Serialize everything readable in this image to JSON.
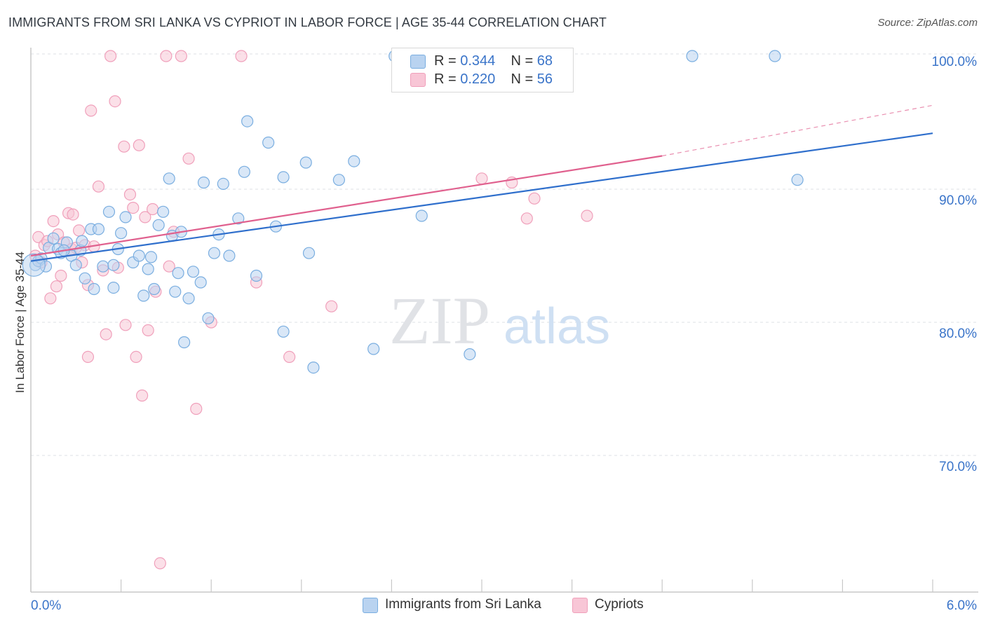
{
  "title": "IMMIGRANTS FROM SRI LANKA VS CYPRIOT IN LABOR FORCE | AGE 35-44 CORRELATION CHART",
  "source": "Source: ZipAtlas.com",
  "watermark": {
    "zip": "ZIP",
    "atlas": "atlas"
  },
  "legend": {
    "blue": {
      "r_label": "R = ",
      "r_value": "0.344",
      "n_label": "N = ",
      "n_value": "68"
    },
    "pink": {
      "r_label": "R = ",
      "r_value": "0.220",
      "n_label": "N = ",
      "n_value": "56"
    }
  },
  "colors": {
    "blue": "#7aaee0",
    "blue_fill": "#b9d3f0",
    "blue_line": "#2f6fcc",
    "pink": "#f0a0bb",
    "pink_fill": "#f8c6d6",
    "pink_line": "#e0608e",
    "tick_label": "#3a74c9",
    "grid": "#dde1e6"
  },
  "chart_data": {
    "type": "scatter",
    "title": "IMMIGRANTS FROM SRI LANKA VS CYPRIOT IN LABOR FORCE | AGE 35-44 CORRELATION CHART",
    "xlabel": "",
    "ylabel": "In Labor Force | Age 35-44",
    "xlim": [
      0,
      6
    ],
    "ylim": [
      60,
      100
    ],
    "x_tick_labels": [
      "0.0%",
      "6.0%"
    ],
    "y_ticks": [
      70,
      80,
      90,
      100
    ],
    "y_tick_labels": [
      "70.0%",
      "80.0%",
      "90.0%",
      "100.0%"
    ],
    "series": [
      {
        "name": "Immigrants from Sri Lanka",
        "R": 0.344,
        "N": 68,
        "trend": {
          "x": [
            0.0,
            6.0
          ],
          "y": [
            84.6,
            94.2
          ]
        },
        "points": [
          [
            0.03,
            84.3
          ],
          [
            0.05,
            84.6
          ],
          [
            0.07,
            84.8
          ],
          [
            0.1,
            84.2
          ],
          [
            0.12,
            85.6
          ],
          [
            0.15,
            86.3
          ],
          [
            0.18,
            85.5
          ],
          [
            0.2,
            85.2
          ],
          [
            0.24,
            86.0
          ],
          [
            0.27,
            85.0
          ],
          [
            0.3,
            84.3
          ],
          [
            0.33,
            85.4
          ],
          [
            0.36,
            83.3
          ],
          [
            0.4,
            87.0
          ],
          [
            0.42,
            82.5
          ],
          [
            0.45,
            87.0
          ],
          [
            0.48,
            84.2
          ],
          [
            0.52,
            88.3
          ],
          [
            0.55,
            84.3
          ],
          [
            0.58,
            85.5
          ],
          [
            0.6,
            86.7
          ],
          [
            0.63,
            87.9
          ],
          [
            0.68,
            84.5
          ],
          [
            0.72,
            85.0
          ],
          [
            0.75,
            82.0
          ],
          [
            0.78,
            84.0
          ],
          [
            0.82,
            82.5
          ],
          [
            0.85,
            87.3
          ],
          [
            0.88,
            88.3
          ],
          [
            0.92,
            90.8
          ],
          [
            0.94,
            86.5
          ],
          [
            0.96,
            82.3
          ],
          [
            0.98,
            83.7
          ],
          [
            1.02,
            78.5
          ],
          [
            1.05,
            81.8
          ],
          [
            1.08,
            83.8
          ],
          [
            1.13,
            83.0
          ],
          [
            1.15,
            90.5
          ],
          [
            1.18,
            80.3
          ],
          [
            1.22,
            85.2
          ],
          [
            1.25,
            86.6
          ],
          [
            1.28,
            90.4
          ],
          [
            1.32,
            85.0
          ],
          [
            1.38,
            87.8
          ],
          [
            1.42,
            91.3
          ],
          [
            1.44,
            95.1
          ],
          [
            1.5,
            83.5
          ],
          [
            1.58,
            93.5
          ],
          [
            1.63,
            87.2
          ],
          [
            1.68,
            79.3
          ],
          [
            1.68,
            90.9
          ],
          [
            1.83,
            92.0
          ],
          [
            1.85,
            85.2
          ],
          [
            1.88,
            76.6
          ],
          [
            2.05,
            90.7
          ],
          [
            2.15,
            92.1
          ],
          [
            2.28,
            78.0
          ],
          [
            2.42,
            100.0
          ],
          [
            2.6,
            88.0
          ],
          [
            2.92,
            77.6
          ],
          [
            4.4,
            100.0
          ],
          [
            4.95,
            100.0
          ],
          [
            5.1,
            90.7
          ],
          [
            0.8,
            84.9
          ],
          [
            0.34,
            86.1
          ],
          [
            0.22,
            85.4
          ],
          [
            0.55,
            82.6
          ],
          [
            1.0,
            86.8
          ]
        ]
      },
      {
        "name": "Cypriots",
        "R": 0.22,
        "N": 56,
        "trend": {
          "x": [
            0.0,
            4.2
          ],
          "y": [
            85.0,
            92.5
          ],
          "dashed_x": [
            4.2,
            6.0
          ],
          "dashed_y": [
            92.5,
            96.3
          ]
        },
        "points": [
          [
            0.03,
            85.0
          ],
          [
            0.05,
            86.4
          ],
          [
            0.07,
            84.5
          ],
          [
            0.09,
            85.8
          ],
          [
            0.11,
            86.1
          ],
          [
            0.13,
            81.8
          ],
          [
            0.15,
            87.6
          ],
          [
            0.17,
            82.7
          ],
          [
            0.18,
            86.6
          ],
          [
            0.2,
            83.5
          ],
          [
            0.22,
            86.0
          ],
          [
            0.25,
            88.2
          ],
          [
            0.27,
            85.5
          ],
          [
            0.28,
            88.1
          ],
          [
            0.3,
            85.6
          ],
          [
            0.32,
            86.9
          ],
          [
            0.34,
            84.5
          ],
          [
            0.36,
            85.8
          ],
          [
            0.38,
            82.8
          ],
          [
            0.4,
            95.9
          ],
          [
            0.42,
            85.7
          ],
          [
            0.45,
            90.2
          ],
          [
            0.48,
            83.9
          ],
          [
            0.5,
            79.1
          ],
          [
            0.53,
            100.0
          ],
          [
            0.56,
            96.6
          ],
          [
            0.58,
            84.1
          ],
          [
            0.62,
            93.2
          ],
          [
            0.63,
            79.8
          ],
          [
            0.66,
            89.6
          ],
          [
            0.68,
            88.6
          ],
          [
            0.7,
            77.4
          ],
          [
            0.72,
            93.3
          ],
          [
            0.74,
            74.5
          ],
          [
            0.76,
            87.9
          ],
          [
            0.78,
            79.4
          ],
          [
            0.81,
            88.5
          ],
          [
            0.83,
            82.3
          ],
          [
            0.86,
            61.9
          ],
          [
            0.9,
            100.0
          ],
          [
            0.92,
            84.2
          ],
          [
            0.95,
            86.8
          ],
          [
            1.0,
            100.0
          ],
          [
            1.05,
            92.3
          ],
          [
            1.1,
            73.5
          ],
          [
            1.2,
            80.0
          ],
          [
            1.4,
            100.0
          ],
          [
            1.5,
            83.0
          ],
          [
            1.72,
            77.4
          ],
          [
            2.0,
            81.2
          ],
          [
            3.0,
            90.8
          ],
          [
            3.2,
            90.5
          ],
          [
            3.3,
            87.8
          ],
          [
            3.35,
            89.3
          ],
          [
            3.7,
            88.0
          ],
          [
            0.38,
            77.4
          ]
        ]
      }
    ]
  },
  "bottom_legend": {
    "blue_label": "Immigrants from Sri Lanka",
    "pink_label": "Cypriots"
  }
}
